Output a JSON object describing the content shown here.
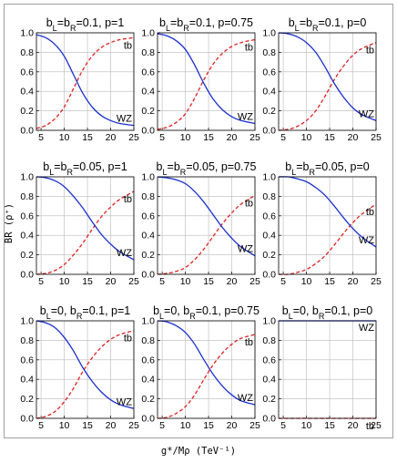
{
  "figure": {
    "ylabel": "BR (ρ⁺)",
    "xlabel": "g*/Mρ (TeV⁻¹)"
  },
  "colors": {
    "tb": "#e02020",
    "WZ": "#1a2fd0"
  },
  "chart_data": [
    {
      "type": "line",
      "title_parts": [
        "b",
        "L",
        "=b",
        "R",
        "=0.1, p=1"
      ],
      "xlim": [
        4,
        25
      ],
      "ylim": [
        0,
        1
      ],
      "xticks": [
        5,
        10,
        15,
        20,
        25
      ],
      "yticks": [
        0.0,
        0.2,
        0.4,
        0.6,
        0.8,
        1.0
      ],
      "series": [
        {
          "name": "tb",
          "style": "dashed",
          "x": [
            4,
            6,
            8,
            10,
            12,
            14,
            16,
            18,
            20,
            22,
            25
          ],
          "y": [
            0.02,
            0.05,
            0.12,
            0.24,
            0.43,
            0.62,
            0.76,
            0.85,
            0.9,
            0.93,
            0.95
          ]
        },
        {
          "name": "WZ",
          "style": "solid",
          "x": [
            4,
            6,
            8,
            10,
            12,
            14,
            16,
            18,
            20,
            22,
            25
          ],
          "y": [
            0.98,
            0.95,
            0.88,
            0.76,
            0.57,
            0.38,
            0.24,
            0.15,
            0.1,
            0.07,
            0.05
          ]
        }
      ]
    },
    {
      "type": "line",
      "title_parts": [
        "b",
        "L",
        "=b",
        "R",
        "=0.1, p=0.75"
      ],
      "xlim": [
        4,
        25
      ],
      "ylim": [
        0,
        1
      ],
      "xticks": [
        5,
        10,
        15,
        20,
        25
      ],
      "yticks": [
        0.0,
        0.2,
        0.4,
        0.6,
        0.8,
        1.0
      ],
      "series": [
        {
          "name": "tb",
          "style": "dashed",
          "x": [
            4,
            6,
            8,
            10,
            12,
            14,
            16,
            18,
            20,
            22,
            25
          ],
          "y": [
            0.01,
            0.03,
            0.08,
            0.17,
            0.33,
            0.52,
            0.68,
            0.79,
            0.86,
            0.9,
            0.93
          ]
        },
        {
          "name": "WZ",
          "style": "solid",
          "x": [
            4,
            6,
            8,
            10,
            12,
            14,
            16,
            18,
            20,
            22,
            25
          ],
          "y": [
            0.99,
            0.97,
            0.92,
            0.83,
            0.67,
            0.48,
            0.32,
            0.21,
            0.14,
            0.1,
            0.07
          ]
        }
      ]
    },
    {
      "type": "line",
      "title_parts": [
        "b",
        "L",
        "=b",
        "R",
        "=0.1, p=0"
      ],
      "xlim": [
        4,
        25
      ],
      "ylim": [
        0,
        1
      ],
      "xticks": [
        5,
        10,
        15,
        20,
        25
      ],
      "yticks": [
        0.0,
        0.2,
        0.4,
        0.6,
        0.8,
        1.0
      ],
      "series": [
        {
          "name": "tb",
          "style": "dashed",
          "x": [
            4,
            6,
            8,
            10,
            12,
            14,
            16,
            18,
            20,
            22,
            25
          ],
          "y": [
            0.0,
            0.01,
            0.04,
            0.1,
            0.2,
            0.35,
            0.52,
            0.66,
            0.77,
            0.84,
            0.9
          ]
        },
        {
          "name": "WZ",
          "style": "solid",
          "x": [
            4,
            6,
            8,
            10,
            12,
            14,
            16,
            18,
            20,
            22,
            25
          ],
          "y": [
            1.0,
            0.99,
            0.96,
            0.9,
            0.8,
            0.65,
            0.48,
            0.34,
            0.23,
            0.16,
            0.1
          ]
        }
      ]
    },
    {
      "type": "line",
      "title_parts": [
        "b",
        "L",
        "=b",
        "R",
        "=0.05, p=1"
      ],
      "xlim": [
        4,
        25
      ],
      "ylim": [
        0,
        1
      ],
      "xticks": [
        5,
        10,
        15,
        20,
        25
      ],
      "yticks": [
        0.0,
        0.2,
        0.4,
        0.6,
        0.8,
        1.0
      ],
      "series": [
        {
          "name": "tb",
          "style": "dashed",
          "x": [
            4,
            6,
            8,
            10,
            12,
            14,
            16,
            18,
            20,
            22,
            25
          ],
          "y": [
            0.0,
            0.01,
            0.04,
            0.1,
            0.2,
            0.32,
            0.46,
            0.59,
            0.69,
            0.77,
            0.85
          ]
        },
        {
          "name": "WZ",
          "style": "solid",
          "x": [
            4,
            6,
            8,
            10,
            12,
            14,
            16,
            18,
            20,
            22,
            25
          ],
          "y": [
            1.0,
            0.99,
            0.96,
            0.9,
            0.8,
            0.68,
            0.54,
            0.41,
            0.31,
            0.23,
            0.15
          ]
        }
      ]
    },
    {
      "type": "line",
      "title_parts": [
        "b",
        "L",
        "=b",
        "R",
        "=0.05, p=0.75"
      ],
      "xlim": [
        4,
        25
      ],
      "ylim": [
        0,
        1
      ],
      "xticks": [
        5,
        10,
        15,
        20,
        25
      ],
      "yticks": [
        0.0,
        0.2,
        0.4,
        0.6,
        0.8,
        1.0
      ],
      "series": [
        {
          "name": "tb",
          "style": "dashed",
          "x": [
            4,
            6,
            8,
            10,
            12,
            14,
            16,
            18,
            20,
            22,
            25
          ],
          "y": [
            0.0,
            0.01,
            0.03,
            0.07,
            0.15,
            0.26,
            0.39,
            0.52,
            0.63,
            0.72,
            0.81
          ]
        },
        {
          "name": "WZ",
          "style": "solid",
          "x": [
            4,
            6,
            8,
            10,
            12,
            14,
            16,
            18,
            20,
            22,
            25
          ],
          "y": [
            1.0,
            0.99,
            0.97,
            0.93,
            0.85,
            0.74,
            0.61,
            0.48,
            0.37,
            0.28,
            0.19
          ]
        }
      ]
    },
    {
      "type": "line",
      "title_parts": [
        "b",
        "L",
        "=b",
        "R",
        "=0.05, p=0"
      ],
      "xlim": [
        4,
        25
      ],
      "ylim": [
        0,
        1
      ],
      "xticks": [
        5,
        10,
        15,
        20,
        25
      ],
      "yticks": [
        0.0,
        0.2,
        0.4,
        0.6,
        0.8,
        1.0
      ],
      "series": [
        {
          "name": "tb",
          "style": "dashed",
          "x": [
            4,
            6,
            8,
            10,
            12,
            14,
            16,
            18,
            20,
            22,
            25
          ],
          "y": [
            0.0,
            0.0,
            0.02,
            0.05,
            0.11,
            0.19,
            0.3,
            0.42,
            0.53,
            0.62,
            0.72
          ]
        },
        {
          "name": "WZ",
          "style": "solid",
          "x": [
            4,
            6,
            8,
            10,
            12,
            14,
            16,
            18,
            20,
            22,
            25
          ],
          "y": [
            1.0,
            1.0,
            0.98,
            0.95,
            0.89,
            0.81,
            0.7,
            0.58,
            0.47,
            0.38,
            0.28
          ]
        }
      ]
    },
    {
      "type": "line",
      "title_parts": [
        "b",
        "L",
        "=0, b",
        "R",
        "=0.1, p=1"
      ],
      "xlim": [
        4,
        25
      ],
      "ylim": [
        0,
        1
      ],
      "xticks": [
        5,
        10,
        15,
        20,
        25
      ],
      "yticks": [
        0.0,
        0.2,
        0.4,
        0.6,
        0.8,
        1.0
      ],
      "series": [
        {
          "name": "tb",
          "style": "dashed",
          "x": [
            4,
            6,
            8,
            10,
            12,
            14,
            16,
            18,
            20,
            22,
            25
          ],
          "y": [
            0.0,
            0.02,
            0.07,
            0.17,
            0.31,
            0.48,
            0.62,
            0.73,
            0.81,
            0.86,
            0.9
          ]
        },
        {
          "name": "WZ",
          "style": "solid",
          "x": [
            4,
            6,
            8,
            10,
            12,
            14,
            16,
            18,
            20,
            22,
            25
          ],
          "y": [
            1.0,
            0.98,
            0.93,
            0.83,
            0.69,
            0.52,
            0.38,
            0.27,
            0.19,
            0.14,
            0.1
          ]
        }
      ]
    },
    {
      "type": "line",
      "title_parts": [
        "b",
        "L",
        "=0, b",
        "R",
        "=0.1, p=0.75"
      ],
      "xlim": [
        4,
        25
      ],
      "ylim": [
        0,
        1
      ],
      "xticks": [
        5,
        10,
        15,
        20,
        25
      ],
      "yticks": [
        0.0,
        0.2,
        0.4,
        0.6,
        0.8,
        1.0
      ],
      "series": [
        {
          "name": "tb",
          "style": "dashed",
          "x": [
            4,
            6,
            8,
            10,
            12,
            14,
            16,
            18,
            20,
            22,
            25
          ],
          "y": [
            0.0,
            0.01,
            0.05,
            0.12,
            0.24,
            0.4,
            0.55,
            0.67,
            0.76,
            0.82,
            0.86
          ]
        },
        {
          "name": "WZ",
          "style": "solid",
          "x": [
            4,
            6,
            8,
            10,
            12,
            14,
            16,
            18,
            20,
            22,
            25
          ],
          "y": [
            1.0,
            0.99,
            0.95,
            0.88,
            0.76,
            0.6,
            0.45,
            0.33,
            0.24,
            0.18,
            0.14
          ]
        }
      ]
    },
    {
      "type": "line",
      "title_parts": [
        "b",
        "L",
        "=0, b",
        "R",
        "=0.1, p=0"
      ],
      "xlim": [
        4,
        25
      ],
      "ylim": [
        0,
        1
      ],
      "xticks": [
        5,
        10,
        15,
        20,
        25
      ],
      "yticks": [
        0.0,
        0.2,
        0.4,
        0.6,
        0.8,
        1.0
      ],
      "series": [
        {
          "name": "tb",
          "style": "dashed",
          "x": [
            4,
            25
          ],
          "y": [
            0.0,
            0.0
          ]
        },
        {
          "name": "WZ",
          "style": "solid",
          "x": [
            4,
            25
          ],
          "y": [
            1.0,
            1.0
          ]
        }
      ]
    }
  ]
}
